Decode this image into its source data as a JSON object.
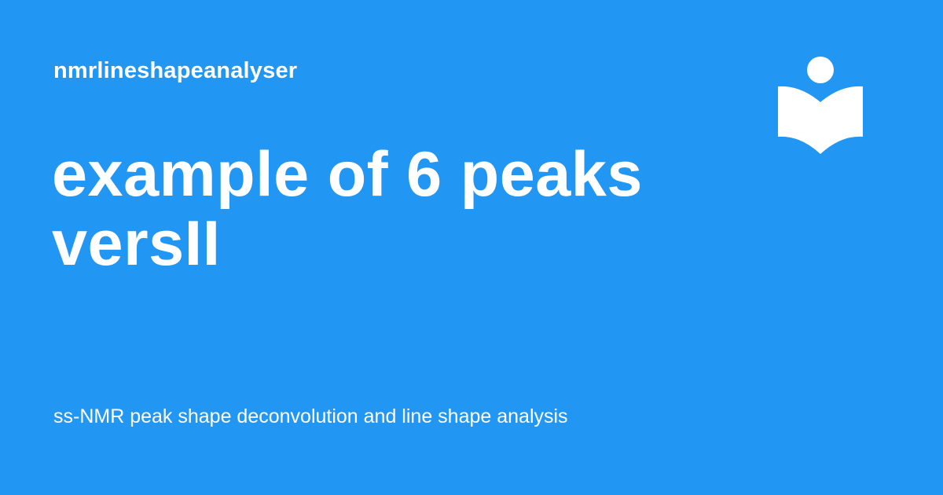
{
  "site": {
    "name": "nmrlineshapeanalyser"
  },
  "page": {
    "title_lines": [
      "example of 6 peaks",
      "versII"
    ],
    "tagline": "ss-NMR peak shape deconvolution and line shape analysis"
  },
  "logo": {
    "icon": "reader-book-icon"
  },
  "colors": {
    "background": "#2196F3",
    "text": "#FFFFFF"
  }
}
